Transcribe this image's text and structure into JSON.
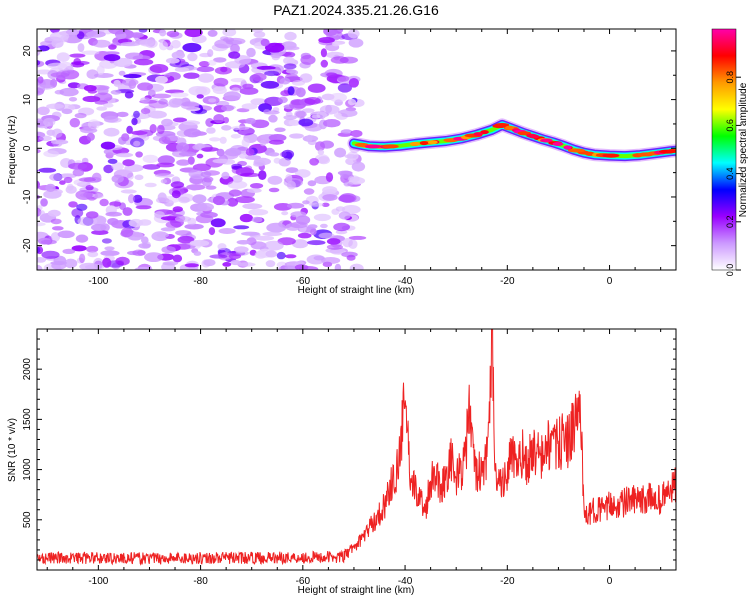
{
  "figure": {
    "title": "PAZ1.2024.335.21.26.G16"
  },
  "chart_data": [
    {
      "type": "heatmap",
      "xlabel": "Height of straight line (km)",
      "ylabel": "Frequency (Hz)",
      "xlim": [
        -112,
        13
      ],
      "ylim": [
        -25,
        24.5
      ],
      "xticks": [
        -100,
        -80,
        -60,
        -40,
        -20,
        0
      ],
      "yticks": [
        -20,
        -10,
        0,
        10,
        20
      ],
      "noise_region_x": [
        -112,
        -50
      ],
      "signal_track": {
        "x": [
          -50,
          -47,
          -44,
          -41,
          -38,
          -35,
          -32,
          -29,
          -26,
          -23,
          -21,
          -19,
          -17,
          -15,
          -13,
          -11,
          -9,
          -7,
          -5,
          -3,
          0,
          3,
          6,
          9,
          12,
          13
        ],
        "frequency": [
          1,
          0.4,
          0.3,
          0.5,
          0.9,
          1.2,
          1.5,
          2.0,
          2.8,
          3.8,
          4.8,
          4.0,
          3.2,
          2.5,
          1.8,
          1.2,
          0.5,
          -0.3,
          -0.9,
          -1.3,
          -1.5,
          -1.6,
          -1.4,
          -1.0,
          -0.6,
          -0.5
        ]
      },
      "colorbar": {
        "label": "Normalized spectral amplitude",
        "range": [
          0,
          1
        ],
        "ticks": [
          "0.0",
          "0.2",
          "0.4",
          "0.6",
          "0.8"
        ],
        "colors": [
          "#ffffff",
          "#cc99ff",
          "#9900ff",
          "#0000ff",
          "#00ffff",
          "#00ff00",
          "#ffff00",
          "#ff9900",
          "#ff0000",
          "#ff00aa"
        ]
      },
      "grid": false
    },
    {
      "type": "line",
      "xlabel": "Height of straight line (km)",
      "ylabel": "SNR (10 * v/v)",
      "xlim": [
        -112,
        13
      ],
      "ylim": [
        0,
        2400
      ],
      "xticks": [
        -100,
        -80,
        -60,
        -40,
        -20,
        0
      ],
      "yticks": [
        500,
        1000,
        1500,
        2000
      ],
      "series": [
        {
          "color": "#ee2222",
          "x": [
            -112,
            -100,
            -90,
            -80,
            -70,
            -60,
            -52,
            -49,
            -47,
            -45,
            -44,
            -43,
            -42,
            -41,
            -40,
            -39.5,
            -39,
            -38,
            -37,
            -36,
            -35,
            -34,
            -33,
            -32,
            -31,
            -30,
            -29,
            -28,
            -27.5,
            -27,
            -26,
            -25,
            -24,
            -23.5,
            -23,
            -22.5,
            -22,
            -21,
            -20,
            -19,
            -18,
            -17,
            -16,
            -15,
            -14,
            -13,
            -12,
            -11,
            -10,
            -9,
            -8,
            -7,
            -6,
            -5.5,
            -5,
            -4,
            -3,
            -2,
            -1,
            0,
            2,
            4,
            6,
            8,
            10,
            12,
            13
          ],
          "y": [
            120,
            120,
            115,
            120,
            120,
            125,
            130,
            280,
            420,
            560,
            650,
            820,
            900,
            1150,
            1720,
            1450,
            750,
            850,
            700,
            600,
            900,
            1000,
            800,
            950,
            1100,
            900,
            1000,
            1200,
            1750,
            1250,
            950,
            1000,
            1100,
            1450,
            2400,
            1300,
            900,
            850,
            1000,
            1150,
            1000,
            1150,
            1050,
            1200,
            1150,
            1100,
            1250,
            1200,
            1250,
            1300,
            1300,
            1400,
            1600,
            1500,
            500,
            550,
            600,
            620,
            580,
            650,
            650,
            700,
            680,
            720,
            700,
            800,
            850
          ]
        }
      ],
      "grid": false
    }
  ]
}
